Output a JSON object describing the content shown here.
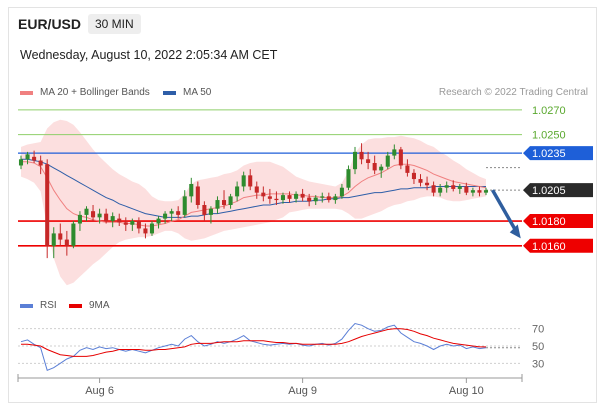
{
  "header": {
    "symbol": "EUR/USD",
    "timeframe": "30 MIN",
    "date": "Wednesday, August 10, 2022 2:05:34 AM CET"
  },
  "legend": {
    "ma20": "MA 20 + Bollinger Bands",
    "ma50": "MA 50",
    "rsi": "RSI",
    "ma9": "9MA",
    "credit": "Research © 2022 Trading Central"
  },
  "colors": {
    "ma20": "#f08080",
    "ma50": "#2e5ea8",
    "band": "#fcd9d9",
    "rsi": "#5b7fd6",
    "ma9": "#e60000",
    "candle_up": "#2e8b2e",
    "candle_down": "#c62828",
    "green_level": "#8fcf6a",
    "blue_level": "#1e5fd8",
    "red_level": "#ee0000",
    "current_price": "#2a2a2a",
    "arrow": "#2f5e9e"
  },
  "chart_data": {
    "type": "candlestick",
    "price_ylim": [
      1.0142,
      1.0278
    ],
    "x_labels": [
      {
        "label": "Aug 6",
        "index": 12
      },
      {
        "label": "Aug 9",
        "index": 43
      },
      {
        "label": "Aug 10",
        "index": 68
      }
    ],
    "levels": [
      {
        "value": 1.027,
        "label": "1.0270",
        "kind": "resistance",
        "color": "#8fcf6a"
      },
      {
        "value": 1.025,
        "label": "1.0250",
        "kind": "resistance",
        "color": "#8fcf6a"
      },
      {
        "value": 1.0235,
        "label": "1.0235",
        "kind": "pivot",
        "color": "#1e5fd8"
      },
      {
        "value": 1.0205,
        "label": "1.0205",
        "kind": "current",
        "color": "#2a2a2a"
      },
      {
        "value": 1.018,
        "label": "1.0180",
        "kind": "support",
        "color": "#ee0000"
      },
      {
        "value": 1.016,
        "label": "1.0160",
        "kind": "support",
        "color": "#ee0000"
      }
    ],
    "arrow": {
      "from_index": 72,
      "from": 1.0205,
      "to_index": 76,
      "to": 1.0166
    },
    "ohlc": [
      [
        1.0225,
        1.0233,
        1.0222,
        1.023
      ],
      [
        1.023,
        1.0236,
        1.0226,
        1.0234
      ],
      [
        1.0232,
        1.0237,
        1.0227,
        1.0229
      ],
      [
        1.0229,
        1.0233,
        1.0218,
        1.0225
      ],
      [
        1.0226,
        1.023,
        1.015,
        1.016
      ],
      [
        1.016,
        1.0175,
        1.015,
        1.017
      ],
      [
        1.017,
        1.0178,
        1.016,
        1.0165
      ],
      [
        1.0165,
        1.0172,
        1.0152,
        1.016
      ],
      [
        1.016,
        1.018,
        1.0158,
        1.0178
      ],
      [
        1.0178,
        1.0188,
        1.0172,
        1.0185
      ],
      [
        1.0185,
        1.0192,
        1.018,
        1.019
      ],
      [
        1.0188,
        1.0193,
        1.018,
        1.0183
      ],
      [
        1.0183,
        1.019,
        1.0178,
        1.0186
      ],
      [
        1.0186,
        1.019,
        1.0178,
        1.018
      ],
      [
        1.018,
        1.0187,
        1.0175,
        1.0184
      ],
      [
        1.0182,
        1.0186,
        1.0176,
        1.0179
      ],
      [
        1.0179,
        1.0183,
        1.0172,
        1.0177
      ],
      [
        1.0177,
        1.0182,
        1.0172,
        1.018
      ],
      [
        1.018,
        1.0183,
        1.017,
        1.0174
      ],
      [
        1.0174,
        1.0178,
        1.0166,
        1.017
      ],
      [
        1.017,
        1.018,
        1.0168,
        1.0178
      ],
      [
        1.0178,
        1.0184,
        1.0174,
        1.0182
      ],
      [
        1.0182,
        1.0188,
        1.0178,
        1.0186
      ],
      [
        1.0186,
        1.019,
        1.018,
        1.0188
      ],
      [
        1.0188,
        1.0192,
        1.0182,
        1.0185
      ],
      [
        1.0185,
        1.0205,
        1.0183,
        1.02
      ],
      [
        1.02,
        1.0215,
        1.0195,
        1.021
      ],
      [
        1.0208,
        1.0212,
        1.019,
        1.0193
      ],
      [
        1.0193,
        1.0196,
        1.018,
        1.0185
      ],
      [
        1.0185,
        1.0192,
        1.0178,
        1.019
      ],
      [
        1.019,
        1.02,
        1.0186,
        1.0197
      ],
      [
        1.0197,
        1.0205,
        1.019,
        1.0193
      ],
      [
        1.0193,
        1.0202,
        1.019,
        1.02
      ],
      [
        1.02,
        1.0212,
        1.0196,
        1.0208
      ],
      [
        1.0208,
        1.022,
        1.0204,
        1.0217
      ],
      [
        1.0217,
        1.0222,
        1.0205,
        1.0208
      ],
      [
        1.0208,
        1.0212,
        1.0198,
        1.0203
      ],
      [
        1.0203,
        1.0208,
        1.0196,
        1.02
      ],
      [
        1.02,
        1.0206,
        1.0194,
        1.0198
      ],
      [
        1.0198,
        1.0204,
        1.0193,
        1.0197
      ],
      [
        1.0197,
        1.0203,
        1.0194,
        1.0201
      ],
      [
        1.0201,
        1.0204,
        1.0195,
        1.0198
      ],
      [
        1.0198,
        1.0204,
        1.0195,
        1.0202
      ],
      [
        1.0202,
        1.0206,
        1.0196,
        1.0199
      ],
      [
        1.0199,
        1.0202,
        1.0192,
        1.0196
      ],
      [
        1.0196,
        1.0201,
        1.0193,
        1.0199
      ],
      [
        1.0199,
        1.0203,
        1.0195,
        1.02
      ],
      [
        1.02,
        1.0203,
        1.0195,
        1.0197
      ],
      [
        1.0197,
        1.0202,
        1.0194,
        1.02
      ],
      [
        1.02,
        1.021,
        1.0198,
        1.0207
      ],
      [
        1.0207,
        1.0225,
        1.0205,
        1.0222
      ],
      [
        1.0222,
        1.024,
        1.0218,
        1.0236
      ],
      [
        1.0236,
        1.0243,
        1.0226,
        1.023
      ],
      [
        1.023,
        1.0236,
        1.0222,
        1.0227
      ],
      [
        1.0227,
        1.0233,
        1.0218,
        1.0221
      ],
      [
        1.0221,
        1.0226,
        1.0215,
        1.0224
      ],
      [
        1.0224,
        1.0236,
        1.0222,
        1.0233
      ],
      [
        1.0233,
        1.0242,
        1.023,
        1.0238
      ],
      [
        1.0238,
        1.024,
        1.0222,
        1.0225
      ],
      [
        1.0225,
        1.023,
        1.0216,
        1.0219
      ],
      [
        1.0219,
        1.0222,
        1.021,
        1.0214
      ],
      [
        1.0214,
        1.0218,
        1.0208,
        1.0211
      ],
      [
        1.0211,
        1.0216,
        1.0205,
        1.0209
      ],
      [
        1.0209,
        1.0212,
        1.02,
        1.0203
      ],
      [
        1.0203,
        1.021,
        1.02,
        1.0207
      ],
      [
        1.0207,
        1.0212,
        1.0203,
        1.0209
      ],
      [
        1.0209,
        1.0213,
        1.0204,
        1.0206
      ],
      [
        1.0206,
        1.021,
        1.0202,
        1.0208
      ],
      [
        1.0208,
        1.0211,
        1.0201,
        1.0203
      ],
      [
        1.0203,
        1.0207,
        1.02,
        1.0205
      ],
      [
        1.0205,
        1.0208,
        1.02,
        1.0203
      ],
      [
        1.0203,
        1.0207,
        1.0201,
        1.0205
      ]
    ],
    "ma20": [
      1.0228,
      1.0228,
      1.0227,
      1.0224,
      1.0215,
      1.0205,
      1.0197,
      1.019,
      1.0186,
      1.0184,
      1.0183,
      1.0181,
      1.018,
      1.0179,
      1.0179,
      1.0179,
      1.0178,
      1.0178,
      1.0177,
      1.0176,
      1.0176,
      1.0177,
      1.0178,
      1.018,
      1.0181,
      1.0184,
      1.0187,
      1.0188,
      1.0189,
      1.019,
      1.0191,
      1.0192,
      1.0194,
      1.0196,
      1.0199,
      1.02,
      1.0201,
      1.0201,
      1.0202,
      1.0202,
      1.0202,
      1.0202,
      1.0201,
      1.0201,
      1.02,
      1.02,
      1.0199,
      1.0199,
      1.0199,
      1.02,
      1.0203,
      1.0208,
      1.0212,
      1.0215,
      1.0217,
      1.0219,
      1.0222,
      1.0225,
      1.0226,
      1.0226,
      1.0225,
      1.0223,
      1.0221,
      1.0218,
      1.0216,
      1.0214,
      1.0212,
      1.0211,
      1.021,
      1.0209,
      1.0208,
      1.0207
    ],
    "ma50": [
      1.023,
      1.023,
      1.0229,
      1.0228,
      1.0226,
      1.0223,
      1.022,
      1.0217,
      1.0214,
      1.0211,
      1.0208,
      1.0205,
      1.0202,
      1.0199,
      1.0197,
      1.0194,
      1.0192,
      1.019,
      1.0188,
      1.0186,
      1.0185,
      1.0184,
      1.0183,
      1.0183,
      1.0183,
      1.0183,
      1.0184,
      1.0184,
      1.0185,
      1.0186,
      1.0186,
      1.0187,
      1.0188,
      1.0189,
      1.019,
      1.0191,
      1.0192,
      1.0193,
      1.0193,
      1.0194,
      1.0195,
      1.0195,
      1.0196,
      1.0196,
      1.0196,
      1.0197,
      1.0197,
      1.0198,
      1.0198,
      1.0199,
      1.0199,
      1.02,
      1.0201,
      1.0202,
      1.0203,
      1.0203,
      1.0204,
      1.0205,
      1.0206,
      1.0206,
      1.0207,
      1.0207,
      1.0207,
      1.0208,
      1.0208,
      1.0208,
      1.0208,
      1.0208,
      1.0208,
      1.0208,
      1.0208,
      1.0208
    ],
    "bb_upper": [
      1.024,
      1.0242,
      1.0243,
      1.0244,
      1.0255,
      1.026,
      1.0262,
      1.0261,
      1.0258,
      1.0252,
      1.0245,
      1.0238,
      1.0232,
      1.0227,
      1.0222,
      1.0218,
      1.0215,
      1.0212,
      1.021,
      1.0206,
      1.02,
      1.0197,
      1.0196,
      1.0196,
      1.0197,
      1.0202,
      1.021,
      1.0213,
      1.0214,
      1.0215,
      1.0216,
      1.0218,
      1.0219,
      1.0221,
      1.0225,
      1.0227,
      1.0228,
      1.0228,
      1.0228,
      1.0226,
      1.0224,
      1.022,
      1.0216,
      1.0214,
      1.0212,
      1.0211,
      1.021,
      1.0209,
      1.0208,
      1.0211,
      1.022,
      1.0235,
      1.0242,
      1.0246,
      1.0247,
      1.0247,
      1.0248,
      1.0248,
      1.0249,
      1.0248,
      1.0247,
      1.0245,
      1.0242,
      1.024,
      1.0236,
      1.0233,
      1.0229,
      1.0226,
      1.0222,
      1.0219,
      1.0216,
      1.0214
    ],
    "bb_lower": [
      1.0216,
      1.0214,
      1.0211,
      1.0204,
      1.0175,
      1.015,
      1.0135,
      1.0128,
      1.013,
      1.0135,
      1.014,
      1.0145,
      1.0149,
      1.0154,
      1.0159,
      1.0163,
      1.0165,
      1.0166,
      1.0167,
      1.0167,
      1.0168,
      1.017,
      1.0172,
      1.0172,
      1.017,
      1.0166,
      1.0164,
      1.0165,
      1.0166,
      1.0168,
      1.017,
      1.0172,
      1.0173,
      1.0174,
      1.0175,
      1.0176,
      1.0177,
      1.0178,
      1.0179,
      1.0181,
      1.0183,
      1.0187,
      1.0188,
      1.0189,
      1.019,
      1.019,
      1.019,
      1.019,
      1.019,
      1.0189,
      1.0186,
      1.0182,
      1.0182,
      1.0184,
      1.0186,
      1.0188,
      1.0191,
      1.0193,
      1.0194,
      1.0196,
      1.0197,
      1.0199,
      1.02,
      1.02,
      1.0199,
      1.0197,
      1.0196,
      1.0196,
      1.0197,
      1.0198,
      1.0199,
      1.02
    ],
    "rsi_panel": {
      "ylim": [
        20,
        80
      ],
      "levels": [
        {
          "value": 70,
          "label": "70"
        },
        {
          "value": 50,
          "label": "50"
        },
        {
          "value": 30,
          "label": "30"
        }
      ],
      "rsi": [
        55,
        57,
        52,
        48,
        22,
        25,
        30,
        35,
        38,
        45,
        48,
        46,
        49,
        47,
        48,
        46,
        44,
        46,
        44,
        42,
        45,
        48,
        50,
        52,
        50,
        58,
        62,
        55,
        50,
        52,
        55,
        53,
        55,
        58,
        62,
        56,
        54,
        52,
        51,
        52,
        53,
        52,
        53,
        51,
        50,
        52,
        53,
        51,
        53,
        58,
        68,
        76,
        74,
        70,
        67,
        68,
        72,
        74,
        65,
        60,
        55,
        53,
        50,
        46,
        50,
        52,
        50,
        51,
        47,
        49,
        47,
        48
      ],
      "ma9": [
        52,
        52,
        51,
        50,
        46,
        43,
        40,
        39,
        38,
        38,
        38,
        39,
        41,
        43,
        44,
        46,
        46,
        46,
        46,
        45,
        45,
        46,
        46,
        47,
        48,
        49,
        52,
        53,
        53,
        53,
        54,
        55,
        55,
        55,
        56,
        56,
        56,
        56,
        55,
        54,
        54,
        53,
        53,
        52,
        52,
        52,
        52,
        52,
        52,
        53,
        55,
        58,
        61,
        63,
        65,
        67,
        69,
        70,
        70,
        69,
        67,
        64,
        62,
        59,
        57,
        55,
        53,
        52,
        51,
        50,
        49,
        49
      ]
    }
  }
}
